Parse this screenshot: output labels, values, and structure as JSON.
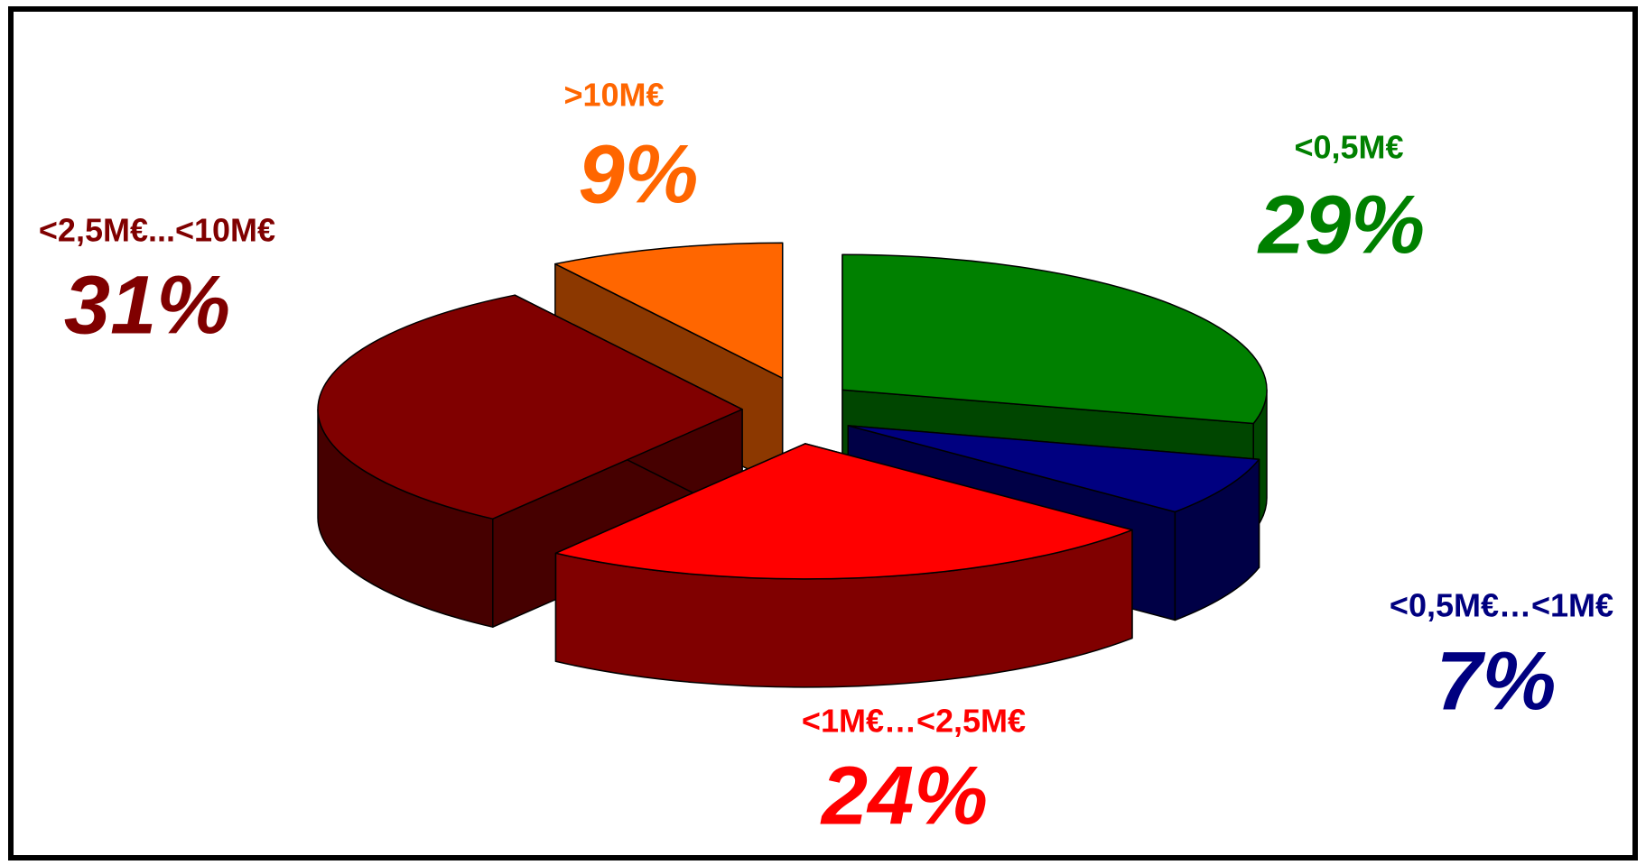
{
  "chart_data": {
    "type": "pie3d",
    "categories": [
      "<0,5M€",
      "<0,5M€…<1M€",
      "<1M€…<2,5M€",
      "<2,5M€...<10M€",
      ">10M€"
    ],
    "values": [
      29,
      7,
      24,
      31,
      9
    ],
    "value_labels": [
      "29%",
      "7%",
      "24%",
      "31%",
      "9%"
    ],
    "colors": [
      "#008000",
      "#000080",
      "#ff0000",
      "#800000",
      "#ff6600"
    ],
    "exploded": true
  }
}
